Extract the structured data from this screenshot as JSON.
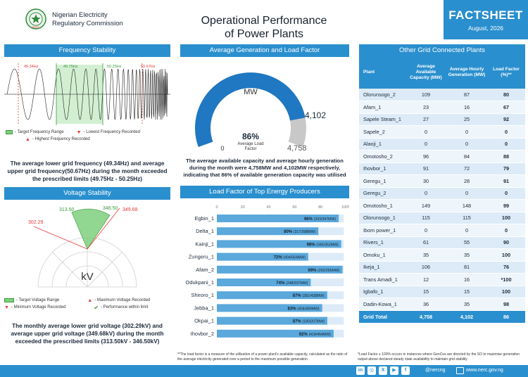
{
  "header": {
    "org_line1": "Nigerian Electricity",
    "org_line2": "Regulatory Commission",
    "title_line1": "Operational Performance",
    "title_line2": "of Power Plants",
    "factsheet": "FACTSHEET",
    "date": "August, 2026",
    "logo_text": "NERC"
  },
  "frequency": {
    "heading": "Frequency Stability",
    "labels": [
      "49.34Hz",
      "49.75Hz",
      "50.25Hz",
      "50.67Hz"
    ],
    "legend_target": "- Target Frequency Range",
    "legend_lowest": "- Lowest Frequency Recorded",
    "legend_highest": "- Highest Frequency Recorded",
    "paragraph": "The average lower grid frequency (49.34Hz) and average upper grid frequency(50.67Hz) during the month exceeded the prescribed limits (49.75Hz - 50.25Hz)"
  },
  "voltage": {
    "heading": "Voltage Stability",
    "lower": "302.29",
    "target_low": "313.50",
    "target_high": "346.50",
    "upper": "349.68",
    "unit": "kV",
    "legend_target": "- Target Voltage Range",
    "legend_max": "- Maximum Voltage Recorded",
    "legend_min": "- Minimum Voltage Recorded",
    "legend_perf": "- Performance within limit",
    "paragraph": "The monthly average lower grid voltage (302.29kV) and average upper grid voltage (349.68kV) during the month exceeded the prescribed limits (313.50kV - 346.50kV)"
  },
  "generation": {
    "heading": "Average Generation and Load Factor",
    "unit": "MW",
    "generated": "4,102",
    "capacity": "4,758",
    "zero": "0",
    "load_factor": "86%",
    "load_factor_label_1": "Average Load",
    "load_factor_label_2": "Factor",
    "load_factor_value": 0.86,
    "paragraph": "The average available capacity and average hourly generation during the month were 4,758MW and 4,102MW respectively, indicating that 86% of available generation capacity was utilised"
  },
  "top_producers": {
    "heading": "Load Factor of Top Energy Producers",
    "ticks": [
      "0",
      "20",
      "40",
      "60",
      "80",
      "100%"
    ],
    "rows": [
      {
        "name": "Egbin_1",
        "pct": 96,
        "label": "96%",
        "detail": "(333/347MW)"
      },
      {
        "name": "Delta_1",
        "pct": 80,
        "label": "80%",
        "detail": "(317/398MW)"
      },
      {
        "name": "Kainji_1",
        "pct": 98,
        "label": "98%",
        "detail": "(345/352MW)"
      },
      {
        "name": "Zungeru_1",
        "pct": 72,
        "label": "72%",
        "detail": "(404/564MW)"
      },
      {
        "name": "Afam_2",
        "pct": 99,
        "label": "99%",
        "detail": "(262/265MW)"
      },
      {
        "name": "Odukpani_1",
        "pct": 74,
        "label": "74%",
        "detail": "(248/337MW)"
      },
      {
        "name": "Shiroro_1",
        "pct": 87,
        "label": "87%",
        "detail": "(381/438MW)"
      },
      {
        "name": "Jebba_1",
        "pct": 83,
        "label": "83%",
        "detail": "(404/489MW)"
      },
      {
        "name": "Okpai_1",
        "pct": 87,
        "label": "87%",
        "detail": "(180/207MW)"
      },
      {
        "name": "Ihovbor_2",
        "pct": 92,
        "label": "92%",
        "detail": "(418/454MW)"
      }
    ]
  },
  "grid": {
    "heading": "Other Grid Connected Plants",
    "columns": [
      "Plant",
      "Average Available Capacity (MW)",
      "Average Hourly Generation (MW)",
      "Load Factor (%)**"
    ],
    "rows": [
      [
        "Olorunsogo_2",
        "109",
        "87",
        "80"
      ],
      [
        "Afam_1",
        "23",
        "16",
        "67"
      ],
      [
        "Sapele Steam_1",
        "27",
        "25",
        "92"
      ],
      [
        "Sapele_2",
        "0",
        "0",
        "0"
      ],
      [
        "Alaoji_1",
        "0",
        "0",
        "0"
      ],
      [
        "Omotosho_2",
        "96",
        "84",
        "88"
      ],
      [
        "Ihovbor_1",
        "91",
        "72",
        "79"
      ],
      [
        "Geregu_1",
        "30",
        "28",
        "91"
      ],
      [
        "Geregu_2",
        "0",
        "0",
        "0"
      ],
      [
        "Omotosho_1",
        "149",
        "148",
        "99"
      ],
      [
        "Olorunsogo_1",
        "115",
        "115",
        "100"
      ],
      [
        "Ibom power_1",
        "0",
        "0",
        "0"
      ],
      [
        "Rivers_1",
        "61",
        "55",
        "90"
      ],
      [
        "Omoku_1",
        "35",
        "35",
        "100"
      ],
      [
        "Ikeja_1",
        "106",
        "81",
        "76"
      ],
      [
        "Trans Amadi_1",
        "12",
        "16",
        "*100"
      ],
      [
        "Igbafo_1",
        "15",
        "15",
        "100"
      ],
      [
        "Dadin-Kowa_1",
        "36",
        "35",
        "98"
      ]
    ],
    "total": [
      "Grid Total",
      "4,758",
      "4,102",
      "86"
    ]
  },
  "notes": {
    "left": "**The load factor is a measure of the utilisation of a power plant's available capacity, calculated as the ratio of the average electricity generated over a period to the maximum possible generation",
    "right": "*Load Factor ≥ 100% occurs in instances where GenCos are directed by the SO to maximise generation output above declared steady state availability to maintain grid stability"
  },
  "footer": {
    "handle": "@nercng",
    "website": "www.nerc.gov.ng",
    "icons": [
      "linkedin-icon",
      "instagram-icon",
      "x-icon",
      "youtube-icon",
      "facebook-icon"
    ]
  },
  "colors": {
    "primary": "#2a8fce",
    "gauge_blue": "#1f78c1",
    "gauge_grey": "#c8c8c8",
    "bar_fill": "#5aa8dc",
    "green": "#7ed07e",
    "red": "#e53935"
  }
}
